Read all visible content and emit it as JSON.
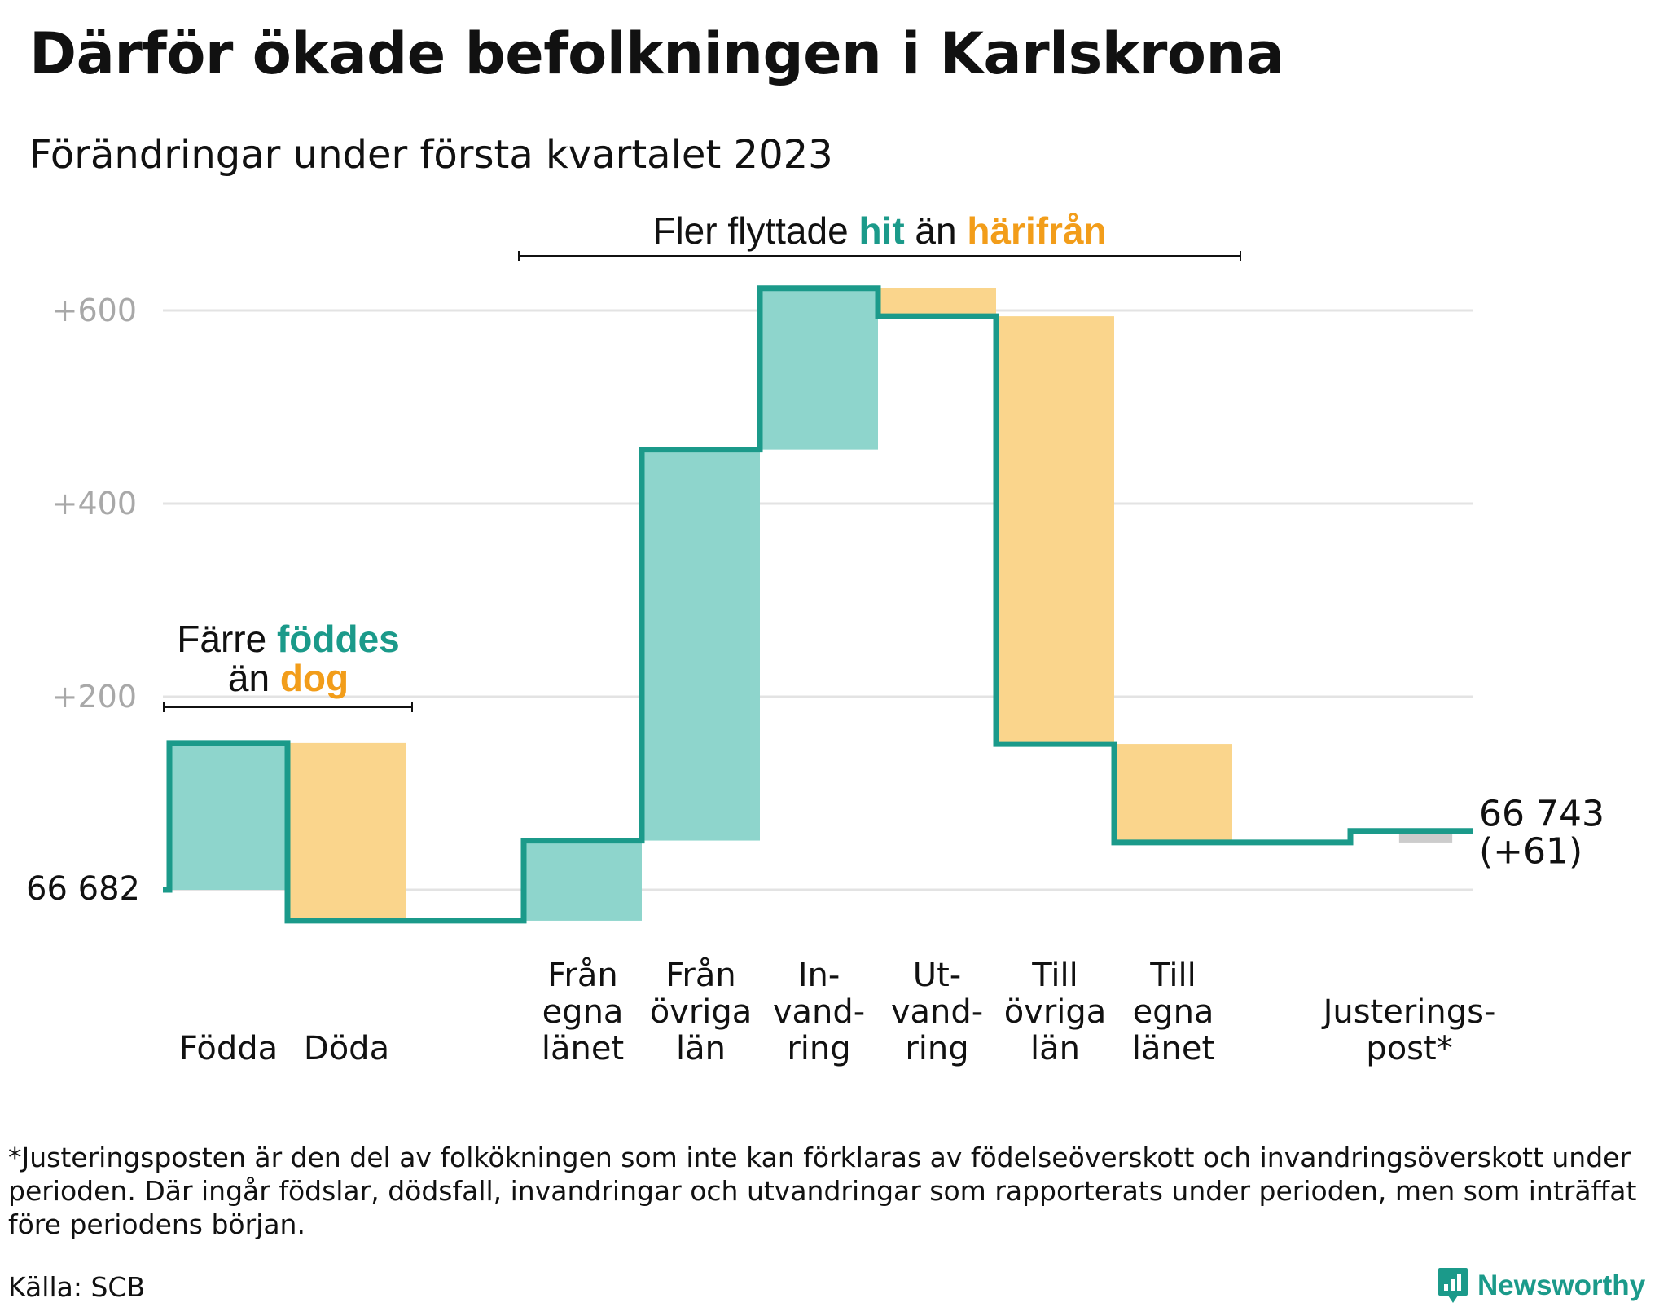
{
  "title": "Därför ökade befolkningen i Karlskrona",
  "subtitle": "Förändringar under första kvartalet 2023",
  "chart_data": {
    "type": "waterfall",
    "baseline_label": "66 682",
    "start_value": 0,
    "y_axis": {
      "ticks": [
        200,
        400,
        600
      ],
      "tick_labels": [
        "+200",
        "+400",
        "+600"
      ],
      "ylim": [
        -50,
        620
      ],
      "grid": true
    },
    "steps": [
      {
        "label_lines": [
          "Födda"
        ],
        "change": 152,
        "kind": "increase"
      },
      {
        "label_lines": [
          "Döda"
        ],
        "change": -184,
        "kind": "decrease"
      },
      {
        "label_lines": [],
        "change": 0,
        "kind": "gap"
      },
      {
        "label_lines": [
          "Från",
          "egna",
          "länet"
        ],
        "change": 83,
        "kind": "increase"
      },
      {
        "label_lines": [
          "Från",
          "övriga",
          "län"
        ],
        "change": 405,
        "kind": "increase"
      },
      {
        "label_lines": [
          "In-",
          "vand-",
          "ring"
        ],
        "change": 167,
        "kind": "increase"
      },
      {
        "label_lines": [
          "Ut-",
          "vand-",
          "ring"
        ],
        "change": -29,
        "kind": "decrease"
      },
      {
        "label_lines": [
          "Till",
          "övriga",
          "län"
        ],
        "change": -443,
        "kind": "decrease"
      },
      {
        "label_lines": [
          "Till",
          "egna",
          "länet"
        ],
        "change": -102,
        "kind": "decrease"
      },
      {
        "label_lines": [],
        "change": 0,
        "kind": "gap"
      },
      {
        "label_lines": [
          "Justerings-",
          "post*"
        ],
        "change": 12,
        "kind": "adjustment"
      }
    ],
    "end_value_label": "66 743",
    "end_change_label": "(+61)",
    "annotations": [
      {
        "parts": [
          {
            "text": "Färre ",
            "color": "#111111"
          },
          {
            "text": "föddes",
            "color": "#1b9a8a"
          }
        ],
        "parts2": [
          {
            "text": "än ",
            "color": "#111111"
          },
          {
            "text": "dog",
            "color": "#f29d1a"
          }
        ]
      },
      {
        "parts": [
          {
            "text": "Fler flyttade ",
            "color": "#111111"
          },
          {
            "text": "hit",
            "color": "#1b9a8a"
          },
          {
            "text": " än ",
            "color": "#111111"
          },
          {
            "text": "härifrån",
            "color": "#f29d1a"
          }
        ]
      }
    ],
    "colors": {
      "increase": "#8ed5cc",
      "decrease": "#fad58c",
      "adjustment": "#cccccc",
      "line": "#1b9a8a",
      "grid": "#e3e3e3",
      "tick": "#a8a8a8",
      "text": "#111111",
      "teal_text": "#1b9a8a",
      "orange_text": "#f29d1a"
    }
  },
  "footnote": "*Justeringsposten är den del av folkökningen som inte kan förklaras av födelseöverskott och invandringsöverskott under perioden. Där ingår födslar, dödsfall, invandringar och utvandringar som rapporterats under perioden, men som inträffat före periodens början.",
  "source": "Källa: SCB",
  "brand": {
    "name": "Newsworthy",
    "icon": "newsworthy-logo-icon",
    "color": "#1b9a8a"
  }
}
